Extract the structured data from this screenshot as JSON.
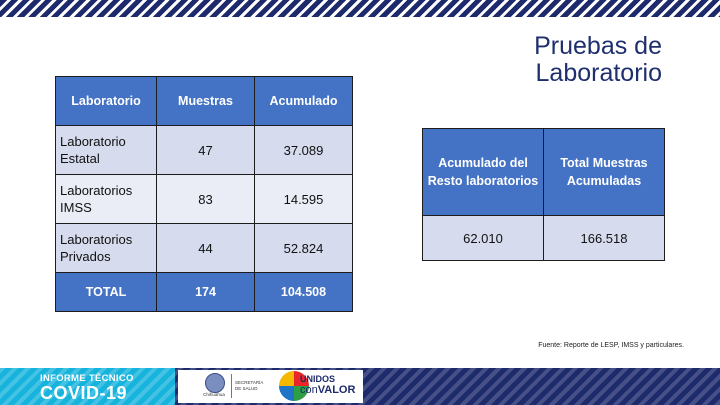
{
  "slide": {
    "title_line1": "Pruebas de",
    "title_line2": "Laboratorio"
  },
  "lab_table": {
    "headers": [
      "Laboratorio",
      "Muestras",
      "Acumulado"
    ],
    "rows": [
      {
        "lab_line1": "Laboratorio",
        "lab_line2": "Estatal",
        "muestras": "47",
        "acumulado": "37.089"
      },
      {
        "lab_line1": "Laboratorios",
        "lab_line2": "IMSS",
        "muestras": "83",
        "acumulado": "14.595"
      },
      {
        "lab_line1": "Laboratorios",
        "lab_line2": "Privados",
        "muestras": "44",
        "acumulado": "52.824"
      }
    ],
    "total": {
      "label": "TOTAL",
      "muestras": "174",
      "acumulado": "104.508"
    }
  },
  "summary_table": {
    "header1_line1": "Acumulado del",
    "header1_line2": "Resto laboratorios",
    "header2_line1": "Total Muestras",
    "header2_line2": "Acumuladas",
    "value1": "62.010",
    "value2": "166.518"
  },
  "source_note": "Fuente: Reporte de LESP, IMSS y particulares.",
  "footer": {
    "informe_label": "INFORME TÉCNICO",
    "covid_label": "COVID-19",
    "brand_unidos": "UNIDOS",
    "brand_con": "con",
    "brand_valor": "VALOR",
    "colors": {
      "navy": "#1d2a6b",
      "cyan": "#16b3dd",
      "table_header": "#4472c4"
    }
  }
}
